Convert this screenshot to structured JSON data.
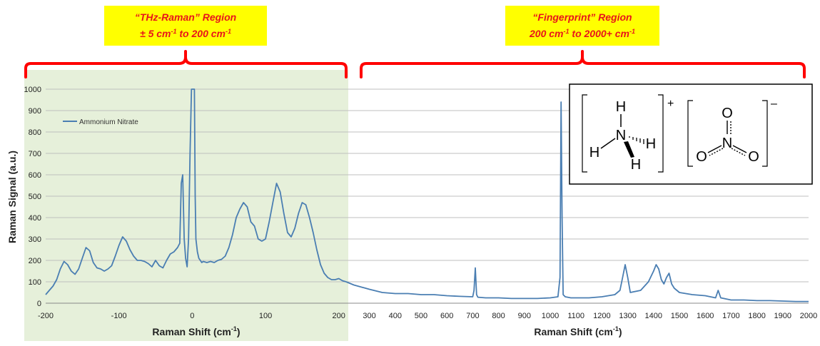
{
  "chart_data": [
    {
      "type": "line",
      "panel": "thz",
      "xlabel": "Raman Shift (cm-1)",
      "xlabel_parts": {
        "text": "Raman Shift (cm",
        "sup": "-1",
        "close": ")"
      },
      "ylabel": "Raman Signal (a.u.)",
      "xlim": [
        -200,
        210
      ],
      "ylim": [
        0,
        1000
      ],
      "x_ticks": [
        "-200",
        "-100",
        "0",
        "100",
        "200"
      ],
      "x_tick_values": [
        -200,
        -100,
        0,
        100,
        200
      ],
      "y_ticks": [
        "0",
        "100",
        "200",
        "300",
        "400",
        "500",
        "600",
        "700",
        "800",
        "900",
        "1000"
      ],
      "y_tick_values": [
        0,
        100,
        200,
        300,
        400,
        500,
        600,
        700,
        800,
        900,
        1000
      ],
      "grid": true,
      "legend": "top-left",
      "series": [
        {
          "name": "Ammonium Nitrate",
          "x": [
            -200,
            -195,
            -190,
            -185,
            -180,
            -175,
            -170,
            -165,
            -160,
            -155,
            -150,
            -145,
            -140,
            -135,
            -130,
            -125,
            -120,
            -115,
            -110,
            -105,
            -100,
            -95,
            -90,
            -85,
            -80,
            -75,
            -70,
            -65,
            -60,
            -55,
            -50,
            -45,
            -40,
            -35,
            -30,
            -25,
            -20,
            -17,
            -15,
            -13,
            -11,
            -9,
            -7,
            -5,
            -3,
            -1,
            0,
            1,
            3,
            4,
            5,
            7,
            9,
            11,
            13,
            15,
            20,
            25,
            30,
            35,
            40,
            45,
            50,
            55,
            60,
            65,
            70,
            75,
            80,
            85,
            90,
            95,
            100,
            105,
            110,
            115,
            120,
            125,
            130,
            135,
            140,
            145,
            150,
            155,
            160,
            165,
            170,
            175,
            180,
            185,
            190,
            195,
            200,
            205,
            210
          ],
          "values": [
            40,
            60,
            80,
            110,
            160,
            195,
            180,
            150,
            135,
            160,
            210,
            260,
            245,
            190,
            165,
            160,
            150,
            160,
            175,
            220,
            270,
            310,
            290,
            250,
            220,
            200,
            200,
            195,
            185,
            170,
            200,
            175,
            165,
            200,
            230,
            240,
            260,
            280,
            560,
            600,
            300,
            210,
            170,
            300,
            700,
            1000,
            1000,
            1000,
            1000,
            500,
            300,
            240,
            210,
            200,
            190,
            195,
            190,
            195,
            190,
            200,
            205,
            220,
            260,
            320,
            400,
            440,
            470,
            450,
            380,
            360,
            300,
            290,
            300,
            380,
            470,
            560,
            520,
            420,
            330,
            310,
            350,
            420,
            470,
            460,
            400,
            330,
            250,
            180,
            140,
            120,
            110,
            110,
            115,
            105,
            100
          ]
        }
      ]
    },
    {
      "type": "line",
      "panel": "fingerprint",
      "xlabel": "Raman Shift (cm-1)",
      "xlabel_parts": {
        "text": "Raman Shift (cm",
        "sup": "-1",
        "close": ")"
      },
      "xlim": [
        210,
        2000
      ],
      "ylim": [
        0,
        1000
      ],
      "x_ticks": [
        "300",
        "400",
        "500",
        "600",
        "700",
        "800",
        "900",
        "1000",
        "1100",
        "1200",
        "1300",
        "1400",
        "1500",
        "1600",
        "1700",
        "1800",
        "1900",
        "2000"
      ],
      "x_tick_values": [
        300,
        400,
        500,
        600,
        700,
        800,
        900,
        1000,
        1100,
        1200,
        1300,
        1400,
        1500,
        1600,
        1700,
        1800,
        1900,
        2000
      ],
      "grid": true,
      "series": [
        {
          "name": "Ammonium Nitrate",
          "x": [
            210,
            240,
            270,
            300,
            350,
            400,
            450,
            500,
            550,
            600,
            650,
            700,
            705,
            710,
            715,
            720,
            750,
            800,
            850,
            900,
            950,
            1000,
            1030,
            1038,
            1042,
            1046,
            1050,
            1058,
            1080,
            1150,
            1200,
            1250,
            1270,
            1280,
            1290,
            1300,
            1310,
            1350,
            1380,
            1400,
            1410,
            1420,
            1430,
            1440,
            1450,
            1460,
            1470,
            1480,
            1500,
            1550,
            1600,
            1640,
            1650,
            1660,
            1680,
            1700,
            1750,
            1800,
            1850,
            1900,
            1950,
            2000
          ],
          "values": [
            100,
            85,
            75,
            65,
            50,
            45,
            45,
            40,
            40,
            35,
            32,
            30,
            60,
            165,
            40,
            28,
            25,
            25,
            22,
            22,
            22,
            25,
            30,
            120,
            940,
            400,
            40,
            30,
            25,
            25,
            30,
            40,
            60,
            120,
            180,
            120,
            50,
            60,
            100,
            150,
            180,
            160,
            110,
            90,
            120,
            140,
            90,
            70,
            50,
            40,
            35,
            25,
            60,
            25,
            20,
            15,
            15,
            12,
            12,
            10,
            8,
            8
          ]
        }
      ]
    }
  ],
  "regions": {
    "thz": {
      "line1": "“THz-Raman” Region",
      "line2_a": "± 5 cm",
      "line2_sup_a": "-1",
      "line2_b": " to 200 cm",
      "line2_sup_b": "-1"
    },
    "fingerprint": {
      "line1": "“Fingerprint” Region",
      "line2_a": "200 cm",
      "line2_sup_a": "-1",
      "line2_b": "  to 2000+ cm",
      "line2_sup_b": "-1"
    }
  },
  "molecule": {
    "cation_atoms": {
      "n": "N",
      "h_top": "H",
      "h_left": "H",
      "h_right": "H",
      "h_bottom": "H"
    },
    "cation_charge": "+",
    "anion_atoms": {
      "n": "N",
      "o_top": "O",
      "o_left": "O",
      "o_right": "O"
    },
    "anion_charge": "–"
  },
  "colors": {
    "series": "#4a7eb2",
    "callout_fill": "#ffff00",
    "callout_text": "#e8141b",
    "bracket": "#ff0000",
    "thz_background": "#e6f0da",
    "grid": "#bfbfbf"
  }
}
